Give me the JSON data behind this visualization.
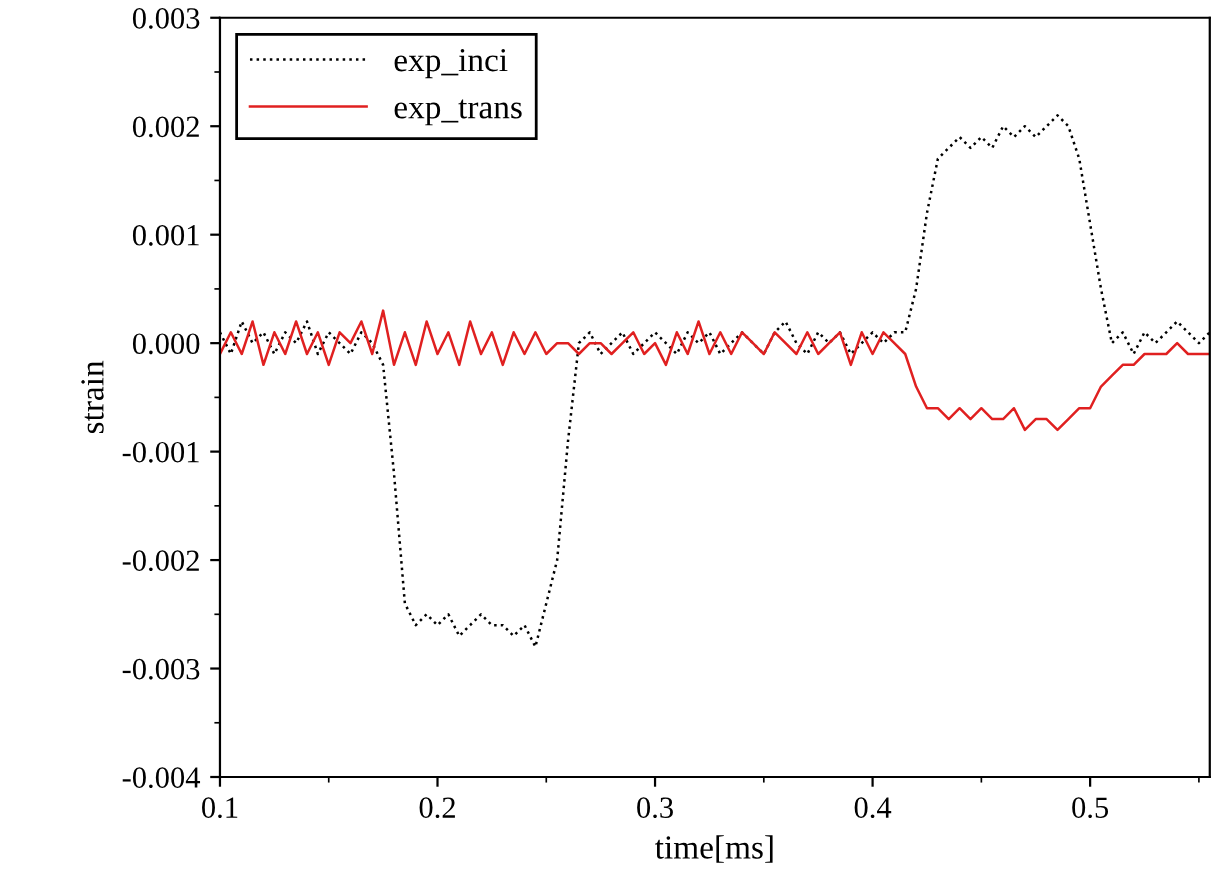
{
  "chart_data": {
    "type": "line",
    "xlabel": "time[ms]",
    "ylabel": "strain",
    "x": [
      0.1,
      0.105,
      0.11,
      0.115,
      0.12,
      0.125,
      0.13,
      0.135,
      0.14,
      0.145,
      0.15,
      0.155,
      0.16,
      0.165,
      0.17,
      0.175,
      0.18,
      0.185,
      0.19,
      0.195,
      0.2,
      0.205,
      0.21,
      0.215,
      0.22,
      0.225,
      0.23,
      0.235,
      0.24,
      0.245,
      0.25,
      0.255,
      0.26,
      0.265,
      0.27,
      0.275,
      0.28,
      0.285,
      0.29,
      0.295,
      0.3,
      0.305,
      0.31,
      0.315,
      0.32,
      0.325,
      0.33,
      0.335,
      0.34,
      0.345,
      0.35,
      0.355,
      0.36,
      0.365,
      0.37,
      0.375,
      0.38,
      0.385,
      0.39,
      0.395,
      0.4,
      0.405,
      0.41,
      0.415,
      0.42,
      0.425,
      0.43,
      0.435,
      0.44,
      0.445,
      0.45,
      0.455,
      0.46,
      0.465,
      0.47,
      0.475,
      0.48,
      0.485,
      0.49,
      0.495,
      0.5,
      0.505,
      0.51,
      0.515,
      0.52,
      0.525,
      0.53,
      0.535,
      0.54,
      0.545,
      0.55,
      0.555
    ],
    "series": [
      {
        "name": "exp_inci",
        "color": "#000000",
        "line_style": "dotted",
        "values": [
          0.0001,
          -0.0001,
          0.0002,
          0,
          0.0001,
          -0.0001,
          0.0001,
          0,
          0.0002,
          -0.0001,
          0.0001,
          0,
          -0.0001,
          0.0001,
          0,
          -0.0002,
          -0.0012,
          -0.0024,
          -0.0026,
          -0.0025,
          -0.0026,
          -0.0025,
          -0.0027,
          -0.0026,
          -0.0025,
          -0.0026,
          -0.0026,
          -0.0027,
          -0.0026,
          -0.0028,
          -0.0024,
          -0.002,
          -0.0009,
          0,
          0.0001,
          -0.0001,
          0,
          0.0001,
          -0.0001,
          0,
          0.0001,
          0,
          -0.0001,
          0.0001,
          0,
          0.0001,
          -0.0001,
          0,
          0.0001,
          0,
          -0.0001,
          0.0001,
          0.0002,
          0,
          -0.0001,
          0.0001,
          0,
          0.0001,
          -0.0001,
          0,
          0.0001,
          0,
          0.0001,
          0.0001,
          0.0005,
          0.0012,
          0.0017,
          0.0018,
          0.0019,
          0.0018,
          0.0019,
          0.0018,
          0.002,
          0.0019,
          0.002,
          0.0019,
          0.002,
          0.0021,
          0.002,
          0.0017,
          0.0011,
          0.0005,
          0,
          0.0001,
          -0.0001,
          0.0001,
          0,
          0.0001,
          0.0002,
          0.0001,
          0,
          0.0001
        ]
      },
      {
        "name": "exp_trans",
        "color": "#e02020",
        "line_style": "solid",
        "values": [
          -0.0001,
          0.0001,
          -0.0001,
          0.0002,
          -0.0002,
          0.0001,
          -0.0001,
          0.0002,
          -0.0001,
          0.0001,
          -0.0002,
          0.0001,
          0,
          0.0002,
          -0.0001,
          0.0003,
          -0.0002,
          0.0001,
          -0.0002,
          0.0002,
          -0.0001,
          0.0001,
          -0.0002,
          0.0002,
          -0.0001,
          0.0001,
          -0.0002,
          0.0001,
          -0.0001,
          0.0001,
          -0.0001,
          0,
          0,
          -0.0001,
          0,
          0,
          -0.0001,
          0,
          0.0001,
          -0.0001,
          0,
          -0.0002,
          0.0001,
          -0.0001,
          0.0002,
          -0.0001,
          0.0001,
          -0.0001,
          0.0001,
          0,
          -0.0001,
          0.0001,
          0,
          -0.0001,
          0.0001,
          -0.0001,
          0,
          0.0001,
          -0.0002,
          0.0001,
          -0.0001,
          0.0001,
          0,
          -0.0001,
          -0.0004,
          -0.0006,
          -0.0006,
          -0.0007,
          -0.0006,
          -0.0007,
          -0.0006,
          -0.0007,
          -0.0007,
          -0.0006,
          -0.0008,
          -0.0007,
          -0.0007,
          -0.0008,
          -0.0007,
          -0.0006,
          -0.0006,
          -0.0004,
          -0.0003,
          -0.0002,
          -0.0002,
          -0.0001,
          -0.0001,
          -0.0001,
          0,
          -0.0001,
          -0.0001,
          -0.0001
        ]
      }
    ],
    "xlim": [
      0.1,
      0.555
    ],
    "xticks": [
      0.1,
      0.2,
      0.3,
      0.4,
      0.5
    ],
    "ylim": [
      -0.004,
      0.003
    ],
    "yticks": [
      -0.004,
      -0.003,
      -0.002,
      -0.001,
      {
        "value": 0,
        "label": "0.000"
      },
      0.001,
      0.002,
      0.003
    ],
    "grid": false,
    "legend": "top left",
    "marker": "none"
  }
}
